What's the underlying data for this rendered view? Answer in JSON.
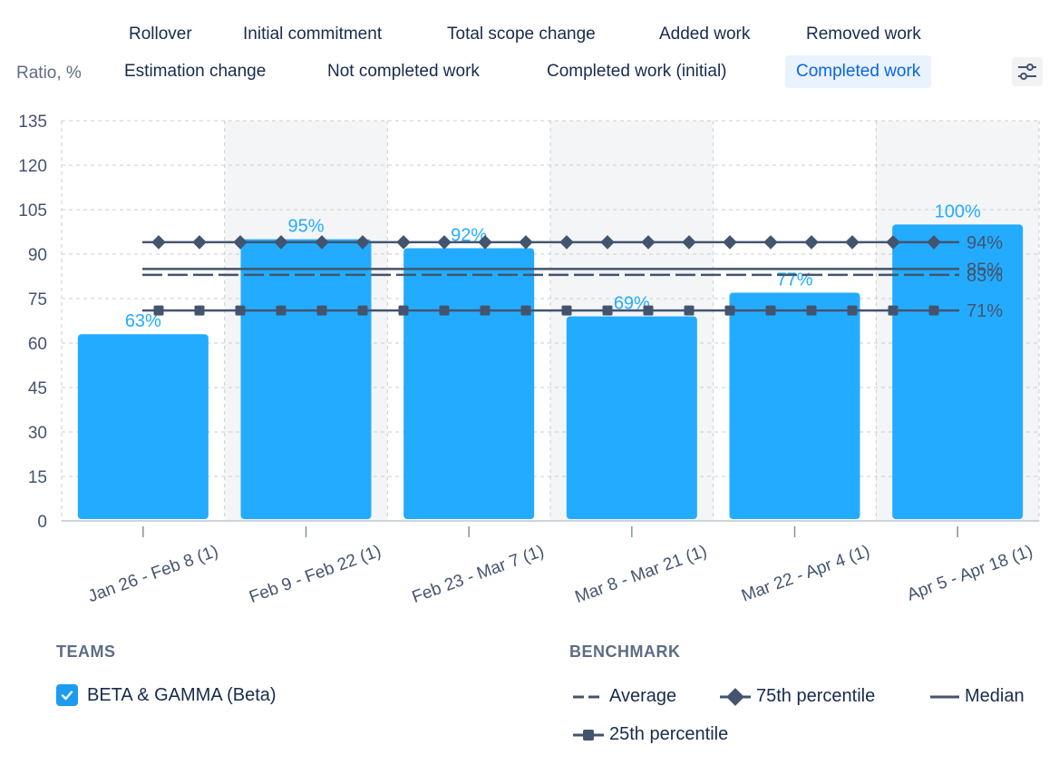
{
  "tabs_row1": [
    "Rollover",
    "Initial commitment",
    "Total scope change",
    "Added work",
    "Removed work"
  ],
  "tabs_row2": [
    "Estimation change",
    "Not completed work",
    "Completed work (initial)",
    "Completed work"
  ],
  "active_tab": "Completed work",
  "colors": {
    "bar": "#23acff",
    "bar_label": "#23acff",
    "benchmark_line": "#44546f",
    "band": "#f4f5f7",
    "grid": "#c9ced6",
    "checkbox": "#1d9bf0"
  },
  "icons": {
    "settings": "sliders-icon",
    "checkbox": "checkmark-icon"
  },
  "teams": {
    "title": "TEAMS",
    "items": [
      {
        "label": "BETA & GAMMA (Beta)",
        "checked": true
      }
    ]
  },
  "benchmark": {
    "title": "BENCHMARK",
    "items": [
      "Average",
      "75th percentile",
      "Median",
      "25th percentile"
    ]
  },
  "chart_data": {
    "type": "bar",
    "ylabel": "Ratio, %",
    "ylim": [
      0,
      135
    ],
    "yticks": [
      0,
      15,
      30,
      45,
      60,
      75,
      90,
      105,
      120,
      135
    ],
    "grid": true,
    "categories": [
      "Jan 26 - Feb 8 (1)",
      "Feb 9 - Feb 22 (1)",
      "Feb 23 - Mar 7 (1)",
      "Mar 8 - Mar 21 (1)",
      "Mar 22 - Apr 4 (1)",
      "Apr 5 - Apr 18 (1)"
    ],
    "values": [
      63,
      95,
      92,
      69,
      77,
      100
    ],
    "value_labels": [
      "63%",
      "95%",
      "92%",
      "69%",
      "77%",
      "100%"
    ],
    "benchmarks": {
      "p75": {
        "value": 94,
        "label": "94%"
      },
      "median": {
        "value": 85,
        "label": "85%"
      },
      "average": {
        "value": 83,
        "label": "83%"
      },
      "p25": {
        "value": 71,
        "label": "71%"
      }
    }
  }
}
